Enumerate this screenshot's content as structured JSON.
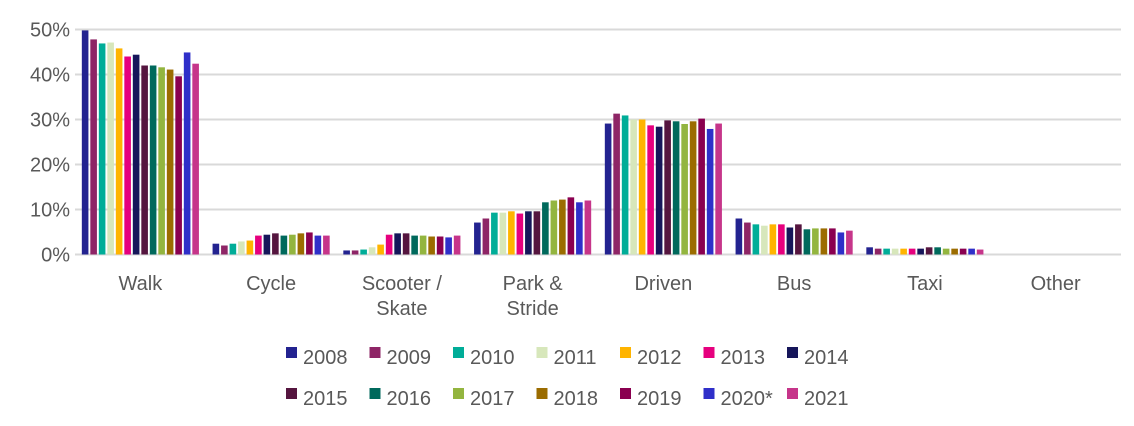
{
  "chart_data": {
    "type": "bar",
    "title": "",
    "xlabel": "",
    "ylabel": "",
    "ylim": [
      0,
      50
    ],
    "yticks": [
      "0%",
      "10%",
      "20%",
      "30%",
      "40%",
      "50%"
    ],
    "ytick_values": [
      0,
      10,
      20,
      30,
      40,
      50
    ],
    "grid": true,
    "legend_position": "bottom",
    "categories": [
      [
        "Walk"
      ],
      [
        "Cycle"
      ],
      [
        "Scooter /",
        "Skate"
      ],
      [
        "Park &",
        "Stride"
      ],
      [
        "Driven"
      ],
      [
        "Bus"
      ],
      [
        "Taxi"
      ],
      [
        "Other"
      ]
    ],
    "series": [
      {
        "name": "2008",
        "color": "#232390",
        "values": [
          49.8,
          2.4,
          0.9,
          7.1,
          29.1,
          8.0,
          1.6,
          0
        ]
      },
      {
        "name": "2009",
        "color": "#8e2566",
        "values": [
          47.8,
          2.0,
          0.9,
          8.0,
          31.3,
          7.1,
          1.3,
          0
        ]
      },
      {
        "name": "2010",
        "color": "#00ad98",
        "values": [
          46.9,
          2.4,
          1.1,
          9.3,
          30.9,
          6.7,
          1.3,
          0
        ]
      },
      {
        "name": "2011",
        "color": "#d7e7bb",
        "values": [
          47.1,
          2.9,
          1.6,
          9.3,
          30.0,
          6.4,
          1.3,
          0
        ]
      },
      {
        "name": "2012",
        "color": "#ffb400",
        "values": [
          45.8,
          3.1,
          2.2,
          9.6,
          30.0,
          6.7,
          1.3,
          0
        ]
      },
      {
        "name": "2013",
        "color": "#e6007e",
        "values": [
          44.0,
          4.2,
          4.4,
          9.1,
          28.7,
          6.7,
          1.3,
          0
        ]
      },
      {
        "name": "2014",
        "color": "#16165a",
        "values": [
          44.4,
          4.4,
          4.7,
          9.6,
          28.4,
          6.0,
          1.3,
          0
        ]
      },
      {
        "name": "2015",
        "color": "#55153f",
        "values": [
          42.0,
          4.7,
          4.7,
          9.6,
          29.8,
          6.7,
          1.6,
          0
        ]
      },
      {
        "name": "2016",
        "color": "#00695c",
        "values": [
          42.0,
          4.2,
          4.2,
          11.6,
          29.6,
          5.6,
          1.6,
          0
        ]
      },
      {
        "name": "2017",
        "color": "#93b53f",
        "values": [
          41.6,
          4.4,
          4.2,
          12.0,
          29.0,
          5.8,
          1.3,
          0
        ]
      },
      {
        "name": "2018",
        "color": "#9b6c00",
        "values": [
          41.1,
          4.7,
          4.0,
          12.2,
          29.6,
          5.8,
          1.3,
          0
        ]
      },
      {
        "name": "2019",
        "color": "#8a0050",
        "values": [
          39.6,
          4.9,
          4.0,
          12.7,
          30.2,
          5.8,
          1.3,
          0
        ]
      },
      {
        "name": "2020*",
        "color": "#2f2fc9",
        "values": [
          44.9,
          4.2,
          3.8,
          11.6,
          27.9,
          4.9,
          1.3,
          0
        ]
      },
      {
        "name": "2021",
        "color": "#c6358a",
        "values": [
          42.4,
          4.2,
          4.2,
          12.0,
          29.1,
          5.3,
          1.1,
          0
        ]
      }
    ]
  }
}
